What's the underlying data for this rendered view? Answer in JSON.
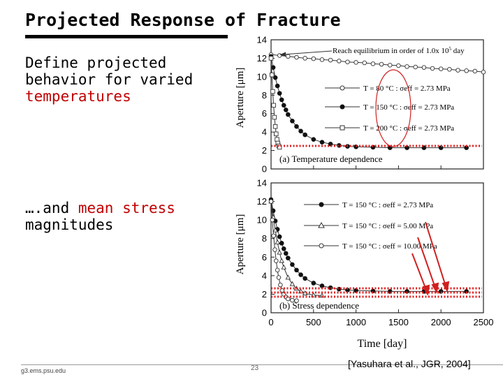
{
  "slide": {
    "title": "Projected Response of Fracture",
    "left_text_1a": "Define projected",
    "left_text_1b": "behavior for varied",
    "left_text_1c": "temperatures",
    "left_text_2a": "….and ",
    "left_text_2b": "mean stress",
    "left_text_2c": "magnitudes",
    "footer_left": "g3.ems.psu.edu",
    "page_number": "23",
    "citation": "[Yasuhara et al., JGR, 2004]"
  },
  "chart_data": [
    {
      "type": "line",
      "caption": "(a) Temperature dependence",
      "ylabel": "Aperture [μm]",
      "xlim": [
        0,
        2500
      ],
      "ylim": [
        0,
        14
      ],
      "yticks": [
        "0",
        "2",
        "4",
        "6",
        "8",
        "10",
        "12",
        "14"
      ],
      "annotation": "Reach equilibrium in order of 1.0x 10",
      "annotation_exp": "5",
      "annotation_unit": " day",
      "series": [
        {
          "name": "T = 80 °C : σeff = 2.73 MPa",
          "marker": "open-circle",
          "x": [
            0,
            100,
            200,
            300,
            400,
            500,
            600,
            700,
            800,
            900,
            1000,
            1100,
            1200,
            1300,
            1400,
            1500,
            1600,
            1700,
            1800,
            1900,
            2000,
            2100,
            2200,
            2300,
            2400,
            2500
          ],
          "y": [
            12.4,
            12.3,
            12.2,
            12.1,
            12.0,
            11.95,
            11.85,
            11.8,
            11.7,
            11.6,
            11.55,
            11.5,
            11.4,
            11.35,
            11.25,
            11.2,
            11.1,
            11.05,
            11.0,
            10.9,
            10.85,
            10.8,
            10.7,
            10.65,
            10.6,
            10.5
          ]
        },
        {
          "name": "T = 150 °C : σeff = 2.73 MPa",
          "marker": "filled-circle",
          "x": [
            0,
            25,
            50,
            75,
            100,
            125,
            150,
            175,
            200,
            250,
            300,
            350,
            400,
            500,
            600,
            700,
            800,
            900,
            1000,
            1200,
            1400,
            1600,
            1800,
            2000,
            2300
          ],
          "y": [
            12.2,
            11.0,
            9.9,
            9.0,
            8.2,
            7.5,
            6.9,
            6.4,
            5.9,
            5.2,
            4.6,
            4.1,
            3.7,
            3.2,
            2.9,
            2.7,
            2.55,
            2.45,
            2.4,
            2.35,
            2.3,
            2.3,
            2.3,
            2.3,
            2.3
          ]
        },
        {
          "name": "T = 200 °C : σeff = 2.73 MPa",
          "marker": "open-square",
          "x": [
            0,
            10,
            20,
            30,
            40,
            50,
            60,
            70,
            80,
            90,
            100
          ],
          "y": [
            12.0,
            10.2,
            8.4,
            6.9,
            5.6,
            4.6,
            3.8,
            3.2,
            2.8,
            2.5,
            2.35
          ]
        }
      ]
    },
    {
      "type": "line",
      "caption": "(b) Stress dependence",
      "ylabel": "Aperture [μm]",
      "xlabel": "Time [day]",
      "xlim": [
        0,
        2500
      ],
      "ylim": [
        0,
        14
      ],
      "xticks": [
        "0",
        "500",
        "1000",
        "1500",
        "2000",
        "2500"
      ],
      "yticks": [
        "0",
        "2",
        "4",
        "6",
        "8",
        "10",
        "12",
        "14"
      ],
      "series": [
        {
          "name": "T = 150 °C : σeff = 2.73 MPa",
          "marker": "filled-circle",
          "x": [
            0,
            25,
            50,
            75,
            100,
            125,
            150,
            175,
            200,
            250,
            300,
            350,
            400,
            500,
            600,
            700,
            800,
            900,
            1000,
            1200,
            1400,
            1600,
            1800,
            2000,
            2300
          ],
          "y": [
            12.2,
            11.0,
            9.9,
            9.0,
            8.2,
            7.5,
            6.9,
            6.4,
            5.9,
            5.2,
            4.6,
            4.1,
            3.7,
            3.2,
            2.9,
            2.7,
            2.55,
            2.45,
            2.4,
            2.35,
            2.3,
            2.3,
            2.3,
            2.3,
            2.3
          ]
        },
        {
          "name": "T = 150 °C : σeff = 5.00 MPa",
          "marker": "open-triangle",
          "x": [
            0,
            25,
            50,
            75,
            100,
            125,
            150,
            200,
            250,
            300,
            350,
            400,
            500,
            600
          ],
          "y": [
            12.0,
            10.3,
            8.9,
            7.6,
            6.5,
            5.6,
            4.9,
            3.8,
            3.1,
            2.6,
            2.3,
            2.1,
            1.9,
            1.85
          ]
        },
        {
          "name": "T = 150 °C : σeff = 10.00 MPa",
          "marker": "open-circle",
          "x": [
            0,
            15,
            30,
            45,
            60,
            75,
            90,
            110,
            130,
            150,
            175,
            200,
            250,
            300
          ],
          "y": [
            12.0,
            10.0,
            8.3,
            6.8,
            5.6,
            4.6,
            3.8,
            3.0,
            2.4,
            2.0,
            1.7,
            1.5,
            1.35,
            1.3
          ]
        }
      ]
    }
  ]
}
